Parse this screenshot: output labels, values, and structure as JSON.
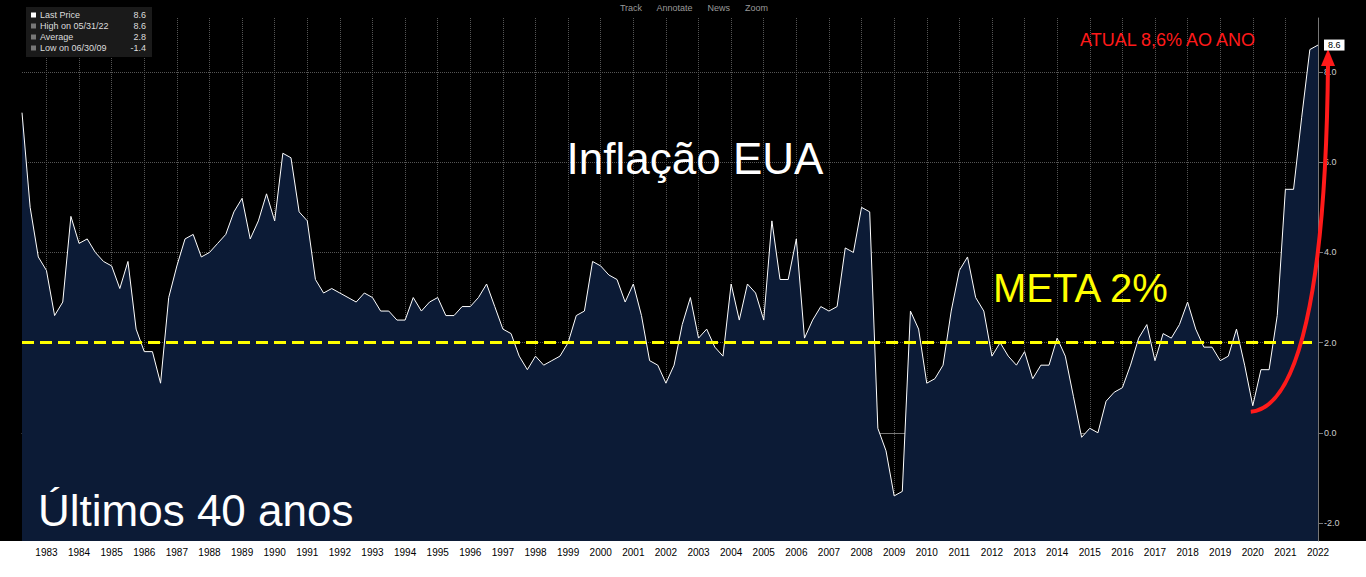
{
  "chart_data": {
    "type": "line",
    "title": "Inflação EUA",
    "subtitle": "Últimos 40 anos",
    "color": "#ffffff",
    "grid": true,
    "ylim": [
      -2.4,
      9.2
    ],
    "yticks": [
      {
        "value": -2,
        "label": "-2.0"
      },
      {
        "value": 0,
        "label": "0.0"
      },
      {
        "value": 2,
        "label": "2.0"
      },
      {
        "value": 4,
        "label": "4.0"
      },
      {
        "value": 6,
        "label": "6.0"
      },
      {
        "value": 8,
        "label": "8.0"
      }
    ],
    "target": {
      "value": 2,
      "label": "META 2%",
      "color": "#ffff00"
    },
    "annotations": [
      {
        "text": "ATUAL 8,6% AO ANO",
        "color": "#ff1a1a"
      }
    ],
    "stats": [
      {
        "label": "Last Price",
        "value": 8.6
      },
      {
        "label": "High on 05/31/22",
        "value": 8.6
      },
      {
        "label": "Average",
        "value": 2.8
      },
      {
        "label": "Low on 06/30/09",
        "value": -1.4
      }
    ],
    "toolbar": [
      "Track",
      "Annotate",
      "News",
      "Zoom"
    ],
    "categories": [
      null,
      null,
      null,
      "1983",
      null,
      null,
      null,
      "1984",
      null,
      null,
      null,
      "1985",
      null,
      null,
      null,
      "1986",
      null,
      null,
      null,
      "1987",
      null,
      null,
      null,
      "1988",
      null,
      null,
      null,
      "1989",
      null,
      null,
      null,
      "1990",
      null,
      null,
      null,
      "1991",
      null,
      null,
      null,
      "1992",
      null,
      null,
      null,
      "1993",
      null,
      null,
      null,
      "1994",
      null,
      null,
      null,
      "1995",
      null,
      null,
      null,
      "1996",
      null,
      null,
      null,
      "1997",
      null,
      null,
      null,
      "1998",
      null,
      null,
      null,
      "1999",
      null,
      null,
      null,
      "2000",
      null,
      null,
      null,
      "2001",
      null,
      null,
      null,
      "2002",
      null,
      null,
      null,
      "2003",
      null,
      null,
      null,
      "2004",
      null,
      null,
      null,
      "2005",
      null,
      null,
      null,
      "2006",
      null,
      null,
      null,
      "2007",
      null,
      null,
      null,
      "2008",
      null,
      null,
      null,
      "2009",
      null,
      null,
      null,
      "2010",
      null,
      null,
      null,
      "2011",
      null,
      null,
      null,
      "2012",
      null,
      null,
      null,
      "2013",
      null,
      null,
      null,
      "2014",
      null,
      null,
      null,
      "2015",
      null,
      null,
      null,
      "2016",
      null,
      null,
      null,
      "2017",
      null,
      null,
      null,
      "2018",
      null,
      null,
      null,
      "2019",
      null,
      null,
      null,
      "2020",
      null,
      null,
      null,
      "2021",
      null,
      null,
      null,
      "2022"
    ],
    "values": [
      7.1,
      5.0,
      3.9,
      3.6,
      2.6,
      2.9,
      4.8,
      4.2,
      4.3,
      4.0,
      3.8,
      3.7,
      3.2,
      3.8,
      2.3,
      1.8,
      1.8,
      1.1,
      3.0,
      3.7,
      4.3,
      4.4,
      3.9,
      4.0,
      4.2,
      4.4,
      4.9,
      5.2,
      4.3,
      4.7,
      5.3,
      4.7,
      6.2,
      6.1,
      4.9,
      4.7,
      3.4,
      3.1,
      3.2,
      3.1,
      3.0,
      2.9,
      3.1,
      3.0,
      2.7,
      2.7,
      2.5,
      2.5,
      3.0,
      2.7,
      2.9,
      3.0,
      2.6,
      2.6,
      2.8,
      2.8,
      3.0,
      3.3,
      2.8,
      2.3,
      2.2,
      1.7,
      1.4,
      1.7,
      1.5,
      1.6,
      1.7,
      2.0,
      2.6,
      2.7,
      3.8,
      3.7,
      3.5,
      3.4,
      2.9,
      3.3,
      2.6,
      1.6,
      1.5,
      1.1,
      1.5,
      2.4,
      3.0,
      2.1,
      2.3,
      1.9,
      1.7,
      3.3,
      2.5,
      3.3,
      3.1,
      2.5,
      4.7,
      3.4,
      3.4,
      4.3,
      2.1,
      2.5,
      2.8,
      2.7,
      2.8,
      4.1,
      4.0,
      5.0,
      4.9,
      0.1,
      -0.4,
      -1.4,
      -1.3,
      2.7,
      2.3,
      1.1,
      1.2,
      1.5,
      2.7,
      3.6,
      3.9,
      3.0,
      2.7,
      1.7,
      2.0,
      1.7,
      1.5,
      1.8,
      1.2,
      1.5,
      1.5,
      2.1,
      1.7,
      0.8,
      -0.1,
      0.1,
      0.0,
      0.7,
      0.9,
      1.0,
      1.5,
      2.1,
      2.4,
      1.6,
      2.2,
      2.1,
      2.4,
      2.9,
      2.3,
      1.9,
      1.9,
      1.6,
      1.7,
      2.3,
      1.5,
      0.6,
      1.4,
      1.4,
      2.6,
      5.4,
      5.4,
      7.0,
      8.5,
      8.6
    ]
  }
}
